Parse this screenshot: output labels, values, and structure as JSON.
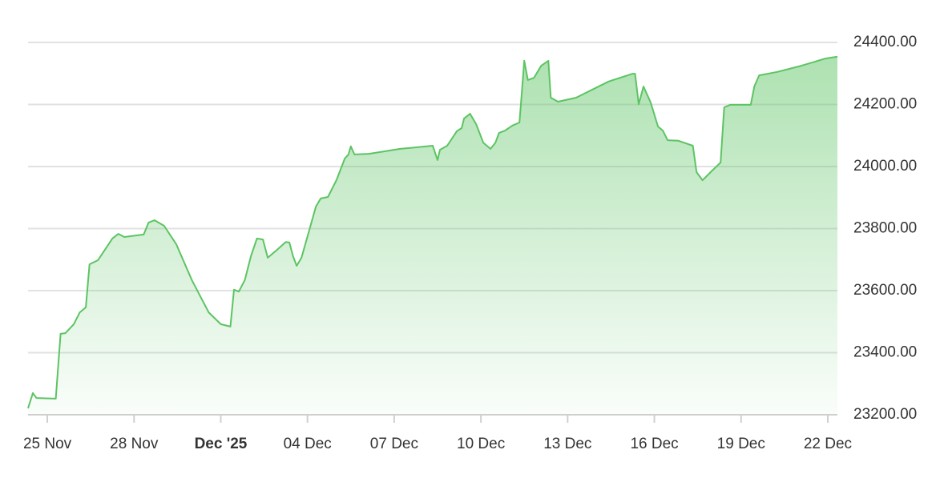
{
  "chart_data": {
    "type": "area",
    "color": "#5cc463",
    "x": [
      "2025-11-24T08:00",
      "2025-11-24T12:00",
      "2025-11-24T15:00",
      "2025-11-25T07:00",
      "2025-11-25T11:00",
      "2025-11-25T15:00",
      "2025-11-25T22:00",
      "2025-11-26T03:00",
      "2025-11-26T08:00",
      "2025-11-26T11:00",
      "2025-11-26T18:00",
      "2025-11-27T06:00",
      "2025-11-27T11:00",
      "2025-11-27T16:00",
      "2025-11-28T08:00",
      "2025-11-28T12:00",
      "2025-11-28T17:00",
      "2025-11-29T01:00",
      "2025-11-29T11:00",
      "2025-11-30T00:00",
      "2025-11-30T14:00",
      "2025-12-01T00:00",
      "2025-12-01T08:00",
      "2025-12-01T11:00",
      "2025-12-01T15:00",
      "2025-12-01T20:00",
      "2025-12-02T01:00",
      "2025-12-02T06:00",
      "2025-12-02T11:00",
      "2025-12-02T15:00",
      "2025-12-02T22:00",
      "2025-12-03T06:00",
      "2025-12-03T09:00",
      "2025-12-03T12:00",
      "2025-12-03T15:00",
      "2025-12-03T19:00",
      "2025-12-04T01:00",
      "2025-12-04T07:00",
      "2025-12-04T11:00",
      "2025-12-04T17:00",
      "2025-12-05T00:00",
      "2025-12-05T07:00",
      "2025-12-05T10:00",
      "2025-12-05T12:00",
      "2025-12-05T15:00",
      "2025-12-06T03:00",
      "2025-12-07T05:00",
      "2025-12-08T08:00",
      "2025-12-08T12:00",
      "2025-12-08T14:00",
      "2025-12-08T20:00",
      "2025-12-09T04:00",
      "2025-12-09T08:00",
      "2025-12-09T10:00",
      "2025-12-09T15:00",
      "2025-12-09T20:00",
      "2025-12-10T02:00",
      "2025-12-10T08:00",
      "2025-12-10T12:00",
      "2025-12-10T15:00",
      "2025-12-10T20:00",
      "2025-12-11T02:00",
      "2025-12-11T08:00",
      "2025-12-11T10:00",
      "2025-12-11T12:00",
      "2025-12-11T15:00",
      "2025-12-11T20:00",
      "2025-12-12T02:00",
      "2025-12-12T08:00",
      "2025-12-12T10:00",
      "2025-12-12T16:00",
      "2025-12-13T07:00",
      "2025-12-14T10:00",
      "2025-12-15T06:00",
      "2025-12-15T08:00",
      "2025-12-15T11:00",
      "2025-12-15T15:00",
      "2025-12-15T21:00",
      "2025-12-16T03:00",
      "2025-12-16T07:00",
      "2025-12-16T11:00",
      "2025-12-16T20:00",
      "2025-12-17T08:00",
      "2025-12-17T11:00",
      "2025-12-17T16:00",
      "2025-12-18T00:00",
      "2025-12-18T07:00",
      "2025-12-18T10:00",
      "2025-12-18T15:00",
      "2025-12-19T08:00",
      "2025-12-19T11:00",
      "2025-12-19T15:00",
      "2025-12-20T06:00",
      "2025-12-21T02:00",
      "2025-12-21T22:00",
      "2025-12-22T08:00"
    ],
    "values": [
      23221,
      23270,
      23254,
      23252,
      23461,
      23463,
      23492,
      23530,
      23546,
      23685,
      23698,
      23768,
      23783,
      23773,
      23781,
      23819,
      23827,
      23809,
      23750,
      23634,
      23530,
      23492,
      23484,
      23603,
      23597,
      23634,
      23711,
      23768,
      23765,
      23706,
      23729,
      23757,
      23755,
      23711,
      23680,
      23706,
      23788,
      23871,
      23897,
      23902,
      23956,
      24026,
      24039,
      24065,
      24039,
      24041,
      24057,
      24067,
      24021,
      24054,
      24067,
      24114,
      24124,
      24155,
      24170,
      24137,
      24077,
      24057,
      24077,
      24108,
      24116,
      24132,
      24142,
      24240,
      24341,
      24279,
      24286,
      24325,
      24341,
      24222,
      24209,
      24222,
      24274,
      24299,
      24299,
      24201,
      24258,
      24206,
      24129,
      24116,
      24085,
      24083,
      24067,
      23982,
      23956,
      23987,
      24013,
      24191,
      24199,
      24199,
      24258,
      24294,
      24305,
      24325,
      24348,
      24354
    ],
    "xlim": [
      "2025-11-24T08:00",
      "2025-12-22T08:00"
    ],
    "xticks": [
      {
        "value": "2025-11-25T00:00",
        "label": "25 Nov"
      },
      {
        "value": "2025-11-28T00:00",
        "label": "28 Nov"
      },
      {
        "value": "2025-12-01T00:00",
        "label": "Dec '25"
      },
      {
        "value": "2025-12-04T00:00",
        "label": "04 Dec"
      },
      {
        "value": "2025-12-07T00:00",
        "label": "07 Dec"
      },
      {
        "value": "2025-12-10T00:00",
        "label": "10 Dec"
      },
      {
        "value": "2025-12-13T00:00",
        "label": "13 Dec"
      },
      {
        "value": "2025-12-16T00:00",
        "label": "16 Dec"
      },
      {
        "value": "2025-12-19T00:00",
        "label": "19 Dec"
      },
      {
        "value": "2025-12-22T00:00",
        "label": "22 Dec"
      }
    ],
    "ylim": [
      23200,
      24400
    ],
    "yticks": [
      {
        "value": 23200,
        "label": "23200.00"
      },
      {
        "value": 23400,
        "label": "23400.00"
      },
      {
        "value": 23600,
        "label": "23600.00"
      },
      {
        "value": 23800,
        "label": "23800.00"
      },
      {
        "value": 24000,
        "label": "24000.00"
      },
      {
        "value": 24200,
        "label": "24200.00"
      },
      {
        "value": 24400,
        "label": "24400.00"
      }
    ],
    "grid": true
  }
}
